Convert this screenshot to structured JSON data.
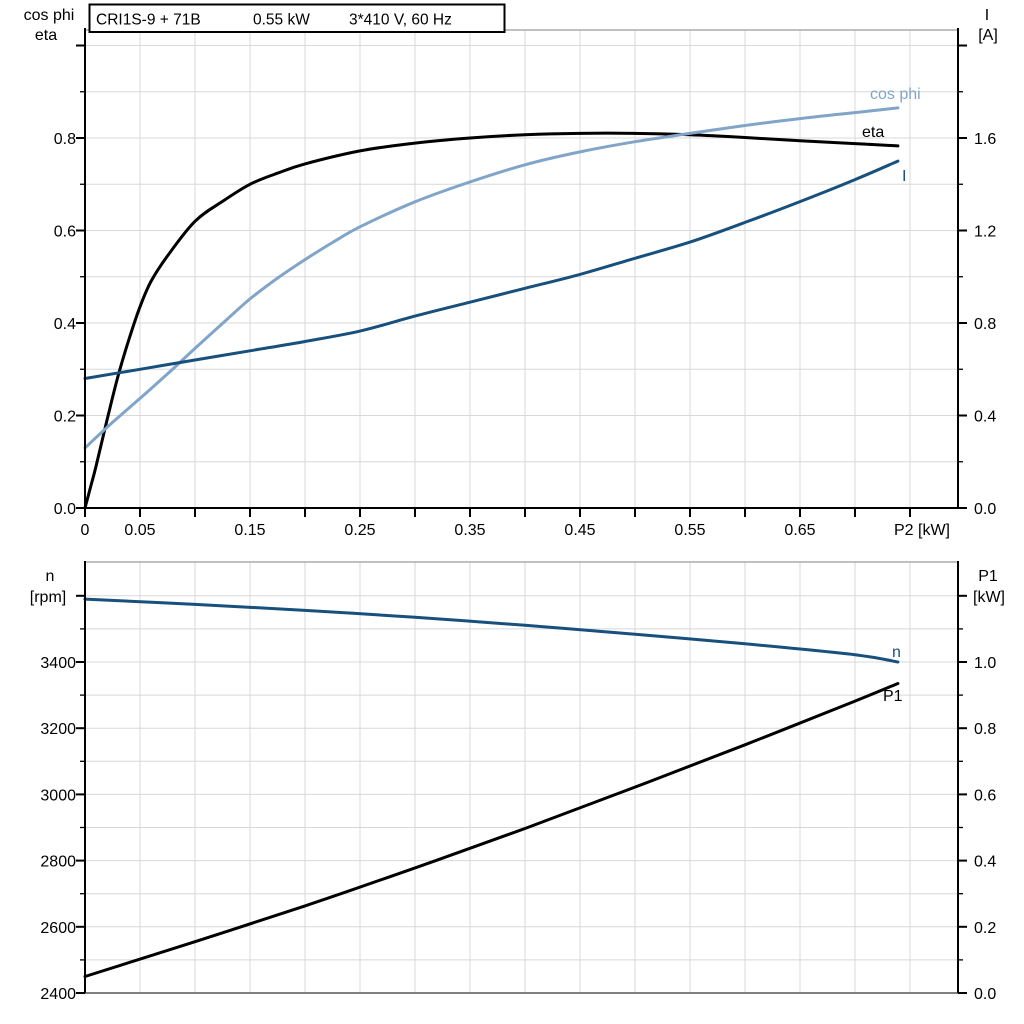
{
  "title": {
    "pump": "CRI1S-9 + 71B",
    "power": "0.55 kW",
    "supply": "3*410 V, 60 Hz"
  },
  "colors": {
    "eta": "#000000",
    "cos_phi": "#80A5C8",
    "current": "#17507D",
    "speed": "#17507D",
    "p1": "#000000",
    "grid": "#D8D8D8",
    "frame": "#9A9A9A",
    "axis": "#000000",
    "bottom_axis": "#808080",
    "background": "#FFFFFF"
  },
  "chart1": {
    "left_axis_title_line1": "cos phi",
    "left_axis_title_line2": "eta",
    "right_axis_title_line1": "I",
    "right_axis_title_line2": "[A]",
    "x_axis_title": "P2 [kW]",
    "x_tick_labels": [
      "0",
      "0.05",
      "0.15",
      "0.25",
      "0.35",
      "0.45",
      "0.55",
      "0.65"
    ],
    "left_tick_labels": [
      "0.0",
      "0.2",
      "0.4",
      "0.6",
      "0.8"
    ],
    "right_tick_labels": [
      "0.0",
      "0.4",
      "0.8",
      "1.2",
      "1.6"
    ],
    "curve_labels": {
      "cos_phi": "cos phi",
      "eta": "eta",
      "current": "I"
    }
  },
  "chart2": {
    "left_axis_title_line1": "n",
    "left_axis_title_line2": "[rpm]",
    "right_axis_title_line1": "P1",
    "right_axis_title_line2": "[kW]",
    "left_tick_labels": [
      "2400",
      "2600",
      "2800",
      "3000",
      "3200",
      "3400"
    ],
    "right_tick_labels": [
      "0.0",
      "0.2",
      "0.4",
      "0.6",
      "0.8",
      "1.0"
    ],
    "curve_labels": {
      "speed": "n",
      "p1": "P1"
    }
  },
  "chart_data": [
    {
      "type": "line",
      "title": "CRI1S-9 + 71B  0.55 kW  3*410 V, 60 Hz",
      "xlabel": "P2 [kW]",
      "x_range": [
        0,
        0.794
      ],
      "x_tick_step": 0.05,
      "x_labeled_ticks": [
        0,
        0.05,
        0.15,
        0.25,
        0.35,
        0.45,
        0.55,
        0.65
      ],
      "grid": true,
      "left_axis": {
        "label": "cos phi / eta",
        "range": [
          0,
          1.034
        ],
        "major_ticks": [
          0.0,
          0.2,
          0.4,
          0.6,
          0.8
        ],
        "minor_step": 0.1
      },
      "right_axis": {
        "label": "I [A]",
        "range": [
          0,
          2.068
        ],
        "major_ticks": [
          0.0,
          0.4,
          0.8,
          1.2,
          1.6
        ],
        "minor_step": 0.2
      },
      "series": [
        {
          "name": "eta",
          "axis": "left",
          "color_key": "eta",
          "points": [
            [
              0,
              0
            ],
            [
              0.005,
              0.045
            ],
            [
              0.01,
              0.09
            ],
            [
              0.02,
              0.19
            ],
            [
              0.03,
              0.285
            ],
            [
              0.04,
              0.365
            ],
            [
              0.05,
              0.435
            ],
            [
              0.06,
              0.49
            ],
            [
              0.075,
              0.545
            ],
            [
              0.1,
              0.62
            ],
            [
              0.125,
              0.663
            ],
            [
              0.15,
              0.7
            ],
            [
              0.175,
              0.724
            ],
            [
              0.2,
              0.744
            ],
            [
              0.25,
              0.772
            ],
            [
              0.3,
              0.789
            ],
            [
              0.35,
              0.8
            ],
            [
              0.4,
              0.807
            ],
            [
              0.45,
              0.81
            ],
            [
              0.5,
              0.81
            ],
            [
              0.55,
              0.807
            ],
            [
              0.6,
              0.801
            ],
            [
              0.65,
              0.794
            ],
            [
              0.7,
              0.788
            ],
            [
              0.739,
              0.783
            ]
          ]
        },
        {
          "name": "cos phi",
          "axis": "left",
          "color_key": "cos_phi",
          "points": [
            [
              0,
              0.13
            ],
            [
              0.025,
              0.185
            ],
            [
              0.05,
              0.237
            ],
            [
              0.075,
              0.29
            ],
            [
              0.1,
              0.345
            ],
            [
              0.125,
              0.399
            ],
            [
              0.15,
              0.452
            ],
            [
              0.175,
              0.497
            ],
            [
              0.2,
              0.537
            ],
            [
              0.225,
              0.574
            ],
            [
              0.25,
              0.608
            ],
            [
              0.3,
              0.662
            ],
            [
              0.35,
              0.705
            ],
            [
              0.4,
              0.742
            ],
            [
              0.45,
              0.77
            ],
            [
              0.5,
              0.792
            ],
            [
              0.55,
              0.81
            ],
            [
              0.6,
              0.827
            ],
            [
              0.65,
              0.842
            ],
            [
              0.7,
              0.855
            ],
            [
              0.739,
              0.865
            ]
          ]
        },
        {
          "name": "I",
          "axis": "right",
          "color_key": "current",
          "points": [
            [
              0,
              0.56
            ],
            [
              0.05,
              0.6
            ],
            [
              0.1,
              0.64
            ],
            [
              0.15,
              0.68
            ],
            [
              0.2,
              0.72
            ],
            [
              0.25,
              0.765
            ],
            [
              0.3,
              0.83
            ],
            [
              0.35,
              0.89
            ],
            [
              0.4,
              0.95
            ],
            [
              0.45,
              1.01
            ],
            [
              0.5,
              1.08
            ],
            [
              0.55,
              1.15
            ],
            [
              0.6,
              1.235
            ],
            [
              0.65,
              1.325
            ],
            [
              0.7,
              1.42
            ],
            [
              0.739,
              1.5
            ]
          ]
        }
      ]
    },
    {
      "type": "line",
      "title": "",
      "xlabel": "",
      "x_range": [
        0,
        0.794
      ],
      "x_tick_step": 0.05,
      "grid": true,
      "left_axis": {
        "label": "n [rpm]",
        "range": [
          2322,
          3700
        ],
        "major_ticks": [
          2400,
          2600,
          2800,
          3000,
          3200,
          3400
        ],
        "minor_step": 100
      },
      "right_axis": {
        "label": "P1 [kW]",
        "range": [
          -0.073,
          1.302
        ],
        "major_ticks": [
          0.0,
          0.2,
          0.4,
          0.6,
          0.8,
          1.0
        ],
        "minor_step": 0.1
      },
      "series": [
        {
          "name": "n",
          "axis": "left",
          "color_key": "speed",
          "points": [
            [
              0,
              3590
            ],
            [
              0.1,
              3574
            ],
            [
              0.2,
              3556
            ],
            [
              0.3,
              3535
            ],
            [
              0.4,
              3511
            ],
            [
              0.5,
              3484
            ],
            [
              0.6,
              3455
            ],
            [
              0.7,
              3422
            ],
            [
              0.739,
              3400
            ]
          ]
        },
        {
          "name": "P1",
          "axis": "right",
          "color_key": "p1",
          "points": [
            [
              0,
              0.05
            ],
            [
              0.1,
              0.155
            ],
            [
              0.2,
              0.263
            ],
            [
              0.3,
              0.378
            ],
            [
              0.4,
              0.497
            ],
            [
              0.5,
              0.622
            ],
            [
              0.6,
              0.75
            ],
            [
              0.7,
              0.882
            ],
            [
              0.739,
              0.935
            ]
          ]
        }
      ]
    }
  ]
}
